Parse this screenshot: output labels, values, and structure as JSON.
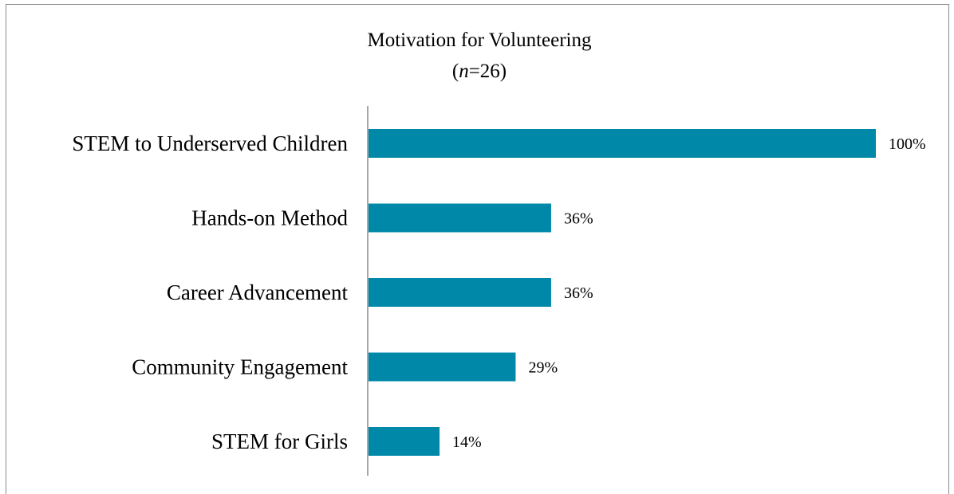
{
  "chart_data": {
    "type": "bar",
    "orientation": "horizontal",
    "title": "Motivation for Volunteering",
    "subtitle": {
      "open": "(",
      "italic": "n",
      "rest": "=26)"
    },
    "categories": [
      "STEM to Underserved Children",
      "Hands-on Method",
      "Career Advancement",
      "Community Engagement",
      "STEM for Girls"
    ],
    "values": [
      100,
      36,
      36,
      29,
      14
    ],
    "data_labels": [
      "100%",
      "36%",
      "36%",
      "29%",
      "14%"
    ],
    "xlim": [
      0,
      100
    ],
    "grid": false,
    "legend": "none",
    "bar_color": "#0088a8",
    "axis_color": "#8a8a8a"
  }
}
